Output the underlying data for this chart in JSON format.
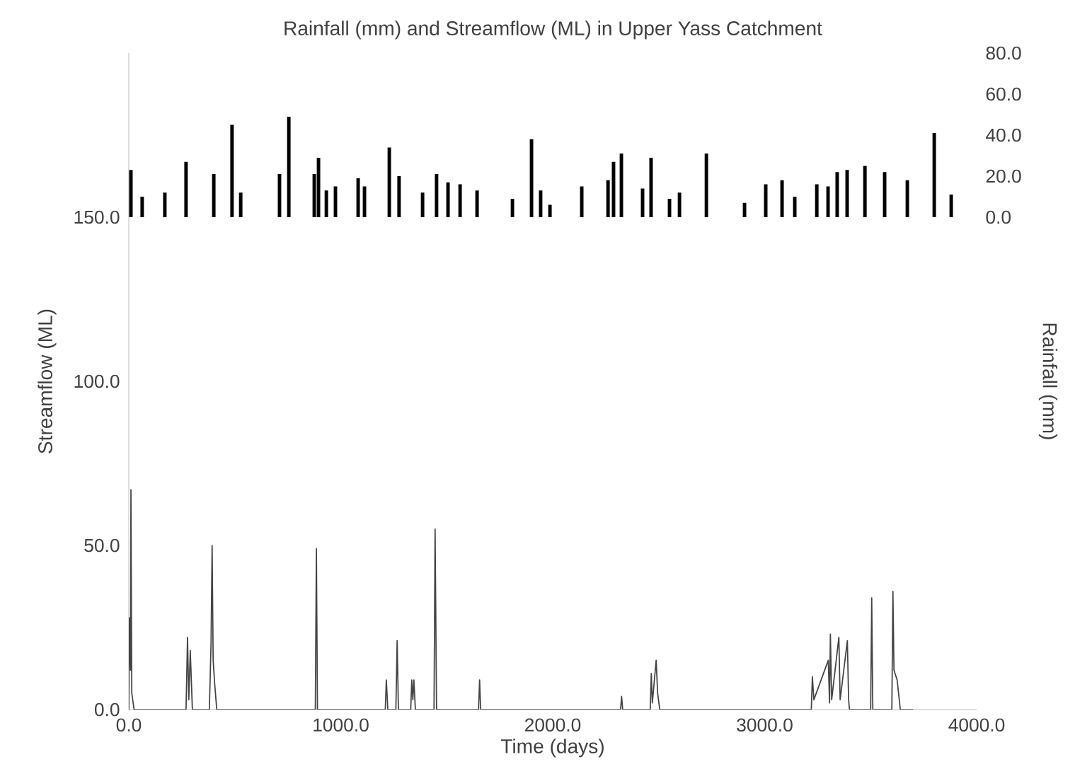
{
  "chart_data": {
    "type": "line",
    "title": "Rainfall (mm) and Streamflow (ML) in Upper Yass Catchment",
    "xlabel": "Time (days)",
    "ylabel": "Streamflow (ML)",
    "y2label": "Rainfall (mm)",
    "xlim": [
      0,
      4000
    ],
    "xticks": [
      {
        "value": 0,
        "label": "0.0"
      },
      {
        "value": 1000,
        "label": "1000.0"
      },
      {
        "value": 2000,
        "label": "2000.0"
      },
      {
        "value": 3000,
        "label": "3000.0"
      },
      {
        "value": 4000,
        "label": "4000.0"
      }
    ],
    "ylim": [
      0,
      200
    ],
    "yticks": [
      {
        "value": 0,
        "label": "0.0"
      },
      {
        "value": 50,
        "label": "50.0"
      },
      {
        "value": 100,
        "label": "100.0"
      },
      {
        "value": 150,
        "label": "150.0"
      }
    ],
    "y2lim": [
      -240,
      80
    ],
    "y2ticks": [
      {
        "value": 0,
        "label": "0.0"
      },
      {
        "value": 20,
        "label": "20.0"
      },
      {
        "value": 40,
        "label": "40.0"
      },
      {
        "value": 60,
        "label": "60.0"
      },
      {
        "value": 80,
        "label": "80.0"
      }
    ],
    "series": [
      {
        "color": "#444444",
        "x": [
          0,
          3,
          8,
          10,
          14,
          25,
          270,
          277,
          283,
          290,
          300,
          380,
          388,
          393,
          398,
          405,
          415,
          880,
          885,
          890,
          1210,
          1215,
          1222,
          1260,
          1266,
          1272,
          1330,
          1335,
          1340,
          1345,
          1352,
          1440,
          1445,
          1452,
          1650,
          1655,
          1660,
          2320,
          2325,
          2330,
          2460,
          2465,
          2470,
          2488,
          2495,
          2505,
          3220,
          3225,
          3232,
          3300,
          3306,
          3310,
          3316,
          3350,
          3356,
          3390,
          3396,
          3400,
          3500,
          3505,
          3510,
          3600,
          3605,
          3610,
          3625,
          3640,
          3700
        ],
        "values": [
          0,
          28,
          12,
          67,
          5,
          0,
          0,
          22,
          3,
          18,
          0,
          0,
          20,
          50,
          15,
          8,
          0,
          0,
          49,
          0,
          0,
          9,
          0,
          0,
          21,
          0,
          0,
          9,
          3,
          9,
          0,
          0,
          55,
          0,
          0,
          9,
          0,
          0,
          4,
          0,
          0,
          11,
          2,
          15,
          5,
          0,
          0,
          10,
          3,
          15,
          2,
          23,
          3,
          22,
          3,
          21,
          3,
          0,
          0,
          34,
          0,
          0,
          36,
          12,
          9,
          0,
          0
        ]
      },
      {
        "type": "bar",
        "axis": "y2",
        "color": "#000000",
        "x": [
          10,
          63,
          170,
          270,
          401,
          487,
          528,
          711,
          755,
          875,
          895,
          932,
          975,
          1082,
          1112,
          1229,
          1275,
          1386,
          1452,
          1506,
          1563,
          1643,
          1810,
          1900,
          1943,
          1987,
          2137,
          2261,
          2287,
          2324,
          2424,
          2464,
          2551,
          2598,
          2725,
          2905,
          3005,
          3082,
          3142,
          3246,
          3299,
          3342,
          3389,
          3473,
          3566,
          3673,
          3800,
          3880
        ],
        "values": [
          23,
          10,
          12,
          27,
          21,
          45,
          12,
          21,
          49,
          21,
          29,
          13,
          15,
          19,
          15,
          34,
          20,
          12,
          21,
          17,
          16,
          13,
          9,
          38,
          13,
          6,
          15,
          18,
          27,
          31,
          14,
          29,
          9,
          12,
          31,
          7,
          16,
          18,
          10,
          16,
          15,
          22,
          23,
          25,
          22,
          18,
          41,
          11
        ]
      }
    ]
  }
}
